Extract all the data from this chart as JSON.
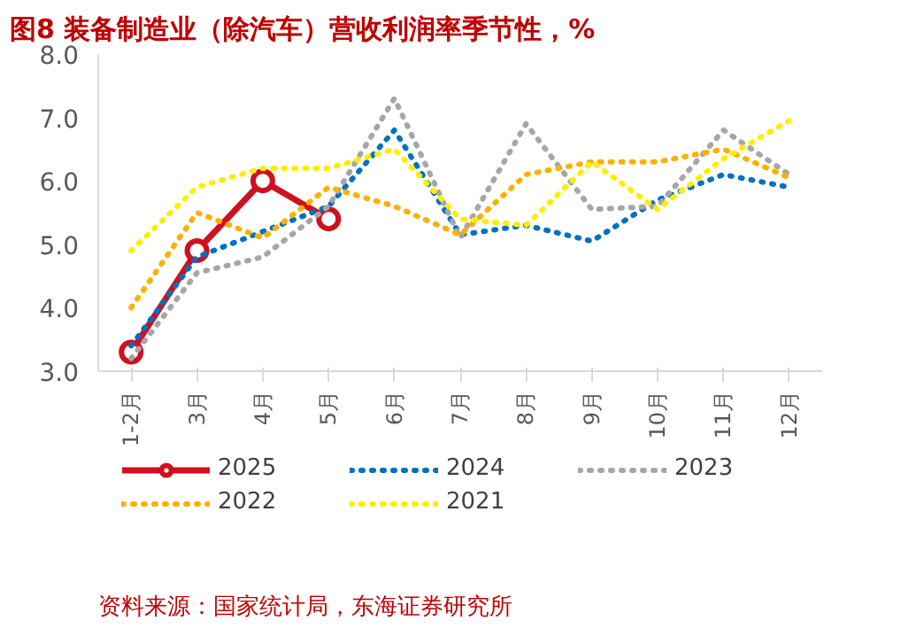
{
  "chart_data": {
    "type": "line",
    "title": "图8  装备制造业（除汽车）营收利润率季节性，%",
    "categories": [
      "1-2月",
      "3月",
      "4月",
      "5月",
      "6月",
      "7月",
      "8月",
      "9月",
      "10月",
      "11月",
      "12月"
    ],
    "ylim": [
      3,
      8
    ],
    "yticks": [
      {
        "value": 3,
        "label": "3.0"
      },
      {
        "value": 4,
        "label": "4.0"
      },
      {
        "value": 5,
        "label": "5.0"
      },
      {
        "value": 6,
        "label": "6.0"
      },
      {
        "value": 7,
        "label": "7.0"
      },
      {
        "value": 8,
        "label": "8.0"
      }
    ],
    "grid": false,
    "legend": "bottom",
    "line_style": "dotted",
    "series": [
      {
        "name": "2025",
        "color": "#d0101e",
        "line_style": "solid",
        "marker": "circle",
        "values": [
          3.3,
          4.9,
          6.0,
          5.4,
          null,
          null,
          null,
          null,
          null,
          null,
          null
        ]
      },
      {
        "name": "2024",
        "color": "#0070c0",
        "values": [
          3.4,
          4.8,
          5.2,
          5.6,
          6.8,
          5.15,
          5.3,
          5.05,
          5.7,
          6.1,
          5.9
        ]
      },
      {
        "name": "2023",
        "color": "#a6a6a6",
        "values": [
          3.2,
          4.55,
          4.8,
          5.6,
          7.3,
          5.1,
          6.9,
          5.55,
          5.6,
          6.8,
          6.1
        ]
      },
      {
        "name": "2022",
        "color": "#ffb000",
        "values": [
          4.0,
          5.5,
          5.1,
          5.9,
          5.6,
          5.15,
          6.1,
          6.3,
          6.3,
          6.5,
          6.05
        ]
      },
      {
        "name": "2021",
        "color": "#ffee00",
        "values": [
          4.9,
          5.9,
          6.2,
          6.2,
          6.5,
          5.4,
          5.3,
          6.3,
          5.55,
          6.35,
          6.95
        ]
      }
    ],
    "annotations": [
      "资料来源：国家统计局，东海证券研究所"
    ]
  }
}
